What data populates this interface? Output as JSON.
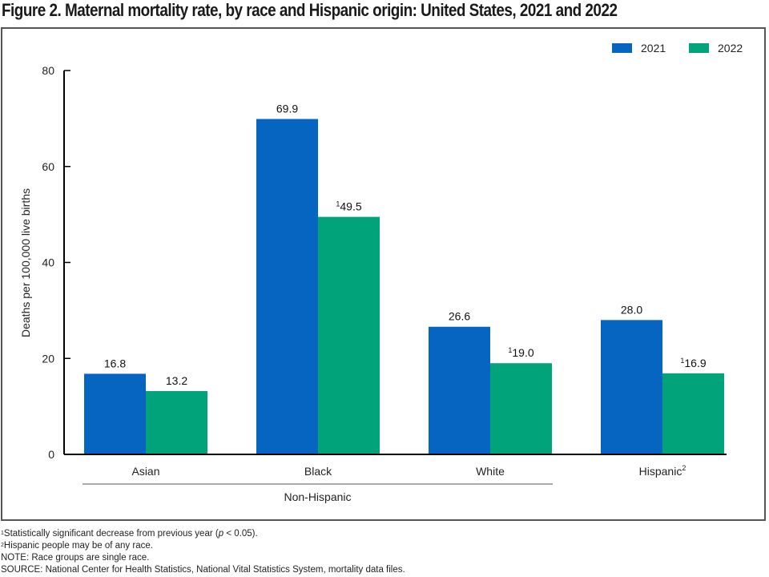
{
  "title": "Figure 2. Maternal mortality rate, by race and Hispanic origin: United States, 2021 and 2022",
  "chart_data": {
    "type": "bar",
    "title": "Figure 2. Maternal mortality rate, by race and Hispanic origin: United States, 2021 and 2022",
    "xlabel": "",
    "ylabel": "Deaths per 100,000 live births",
    "ylim": [
      0,
      80
    ],
    "yticks": [
      0,
      20,
      40,
      60,
      80
    ],
    "grid": false,
    "legend_position": "top-right",
    "categories": [
      "Asian",
      "Black",
      "White",
      "Hispanic"
    ],
    "category_superscripts": [
      "",
      "",
      "",
      "2"
    ],
    "group_label": {
      "text": "Non-Hispanic",
      "categories": [
        "Asian",
        "Black",
        "White"
      ]
    },
    "series": [
      {
        "name": "2021",
        "color": "#0565c0",
        "values": [
          16.8,
          69.9,
          26.6,
          28.0
        ],
        "labels": [
          "16.8",
          "69.9",
          "26.6",
          "28.0"
        ],
        "label_superscripts": [
          "",
          "",
          "",
          ""
        ]
      },
      {
        "name": "2022",
        "color": "#00a37a",
        "values": [
          13.2,
          49.5,
          19.0,
          16.9
        ],
        "labels": [
          "13.2",
          "49.5",
          "19.0",
          "16.9"
        ],
        "label_superscripts": [
          "",
          "1",
          "1",
          "1"
        ]
      }
    ]
  },
  "footnotes": [
    {
      "sup": "1",
      "text": "Statistically significant decrease from previous year (",
      "italic": "p",
      "tail": " < 0.05)."
    },
    {
      "sup": "2",
      "text": "Hispanic people may be of any race.",
      "italic": "",
      "tail": ""
    }
  ],
  "note": "NOTE: Race groups are single race.",
  "source": "SOURCE: National Center for Health Statistics, National Vital Statistics System, mortality data files."
}
